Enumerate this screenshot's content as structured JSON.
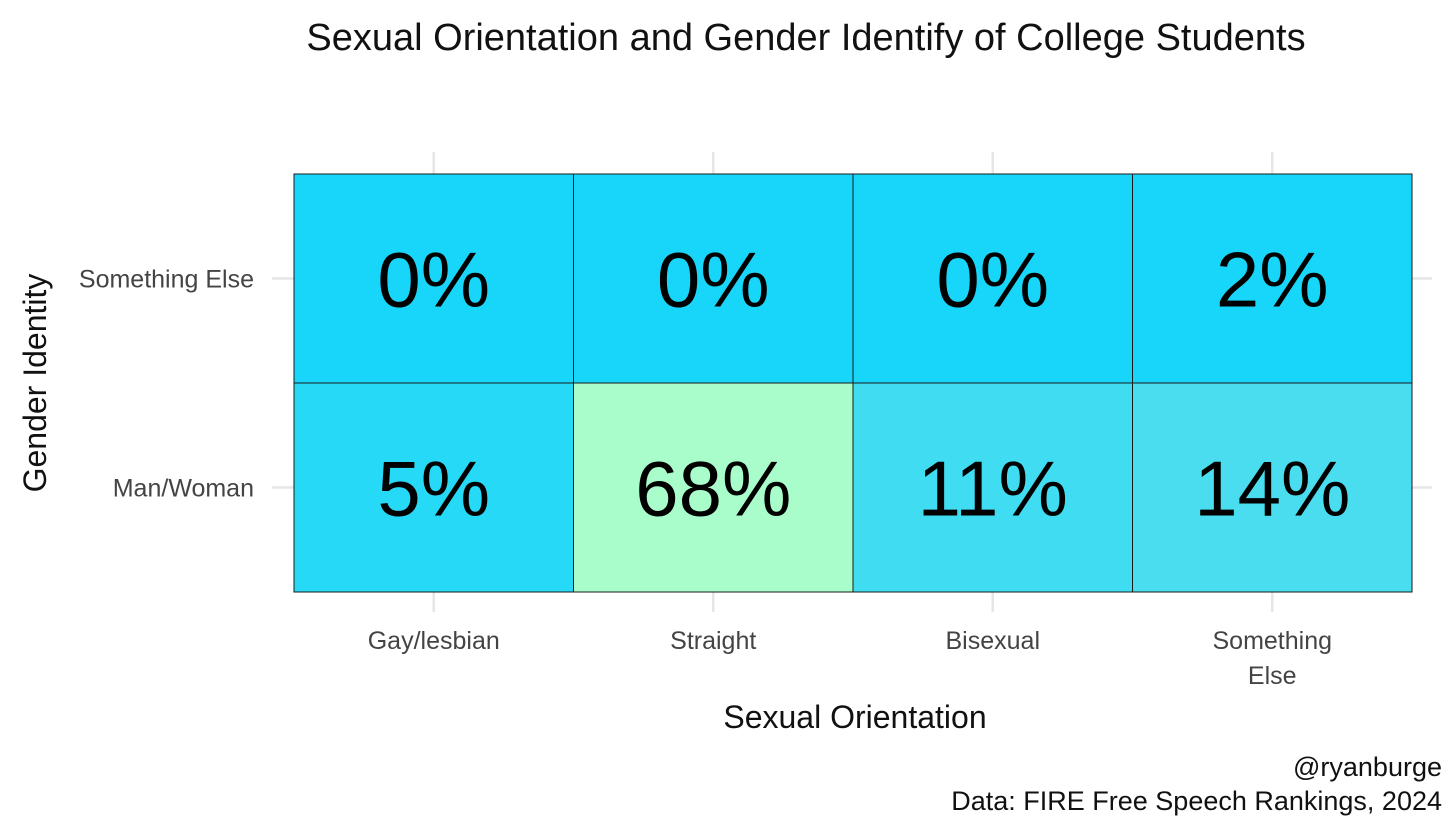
{
  "chart_data": {
    "type": "heatmap",
    "title": "Sexual Orientation and Gender Identify of College Students",
    "xlabel": "Sexual Orientation",
    "ylabel": "Gender Identity",
    "x_categories": [
      "Gay/lesbian",
      "Straight",
      "Bisexual",
      "Something Else"
    ],
    "y_categories": [
      "Man/Woman",
      "Something Else"
    ],
    "cells": [
      {
        "x": "Gay/lesbian",
        "y": "Something Else",
        "value": 0,
        "label": "0%",
        "color": "#18d6f9"
      },
      {
        "x": "Straight",
        "y": "Something Else",
        "value": 0,
        "label": "0%",
        "color": "#18d6f9"
      },
      {
        "x": "Bisexual",
        "y": "Something Else",
        "value": 0,
        "label": "0%",
        "color": "#18d6f9"
      },
      {
        "x": "Something Else",
        "y": "Something Else",
        "value": 2,
        "label": "2%",
        "color": "#18d6f9"
      },
      {
        "x": "Gay/lesbian",
        "y": "Man/Woman",
        "value": 5,
        "label": "5%",
        "color": "#26d9f7"
      },
      {
        "x": "Straight",
        "y": "Man/Woman",
        "value": 68,
        "label": "68%",
        "color": "#a8fdca"
      },
      {
        "x": "Bisexual",
        "y": "Man/Woman",
        "value": 11,
        "label": "11%",
        "color": "#40ddf2"
      },
      {
        "x": "Something Else",
        "y": "Man/Woman",
        "value": 14,
        "label": "14%",
        "color": "#4addf0"
      }
    ],
    "grid": true,
    "legend": "none",
    "caption": [
      "@ryanburge",
      "Data: FIRE Free Speech Rankings, 2024"
    ]
  }
}
